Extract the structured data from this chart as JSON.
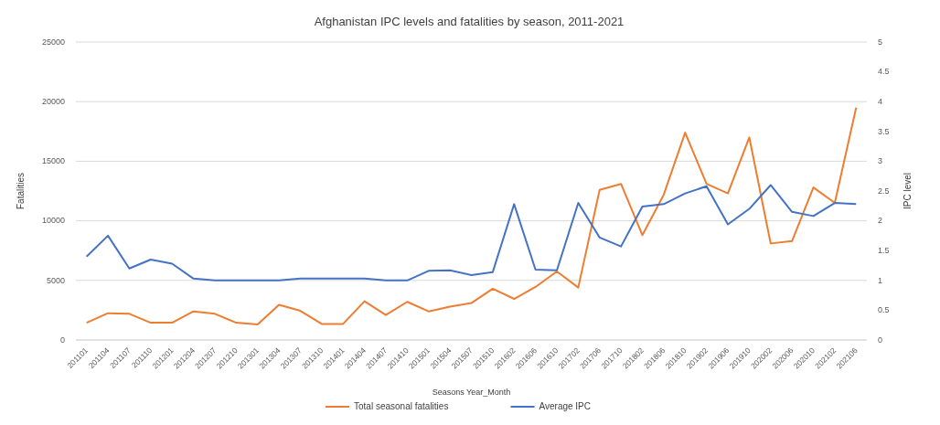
{
  "chart_data": {
    "type": "line",
    "title": "Afghanistan IPC levels and fatalities by season, 2011-2021",
    "xlabel": "Seasons Year_Month",
    "ylabel": "Fatalities",
    "y2label": "IPC level",
    "categories": [
      "201101",
      "201104",
      "201107",
      "201110",
      "201201",
      "201204",
      "201207",
      "201210",
      "201301",
      "201304",
      "201307",
      "201310",
      "201401",
      "201404",
      "201407",
      "201410",
      "201501",
      "201504",
      "201507",
      "201510",
      "201602",
      "201606",
      "201610",
      "201702",
      "201706",
      "201710",
      "201802",
      "201806",
      "201810",
      "201902",
      "201906",
      "201910",
      "202002",
      "202006",
      "202010",
      "202102",
      "202106"
    ],
    "series": [
      {
        "name": "Total seasonal fatalities",
        "color": "#ed7d31",
        "values": [
          1450,
          2250,
          2200,
          1450,
          1450,
          2400,
          2200,
          1450,
          1300,
          2950,
          2450,
          1350,
          1350,
          3250,
          2100,
          3200,
          2400,
          2800,
          3100,
          4300,
          3450,
          4450,
          5750,
          4400,
          12600,
          13100,
          8800,
          12200,
          17400,
          13100,
          12300,
          17000,
          8100,
          8300,
          12800,
          11500,
          19500
        ]
      },
      {
        "name": "Average IPC",
        "color": "#4472c4",
        "axis": "y2",
        "values": [
          1.4,
          1.75,
          1.2,
          1.35,
          1.28,
          1.03,
          1.0,
          1.0,
          1.0,
          1.0,
          1.03,
          1.03,
          1.03,
          1.03,
          1.0,
          1.0,
          1.16,
          1.17,
          1.09,
          1.14,
          2.28,
          1.18,
          1.17,
          2.3,
          1.72,
          1.57,
          2.24,
          2.28,
          2.46,
          2.58,
          1.94,
          2.2,
          2.6,
          2.15,
          2.08,
          2.3,
          2.28
        ]
      }
    ],
    "ylim": [
      0,
      25000
    ],
    "yticks": [
      0,
      5000,
      10000,
      15000,
      20000,
      25000
    ],
    "y2lim": [
      0,
      5
    ],
    "y2ticks": [
      0,
      0.5,
      1,
      1.5,
      2,
      2.5,
      3,
      3.5,
      4,
      4.5,
      5
    ],
    "grid": "y",
    "legend": "bottom",
    "marker": "none",
    "line_style": "solid"
  }
}
